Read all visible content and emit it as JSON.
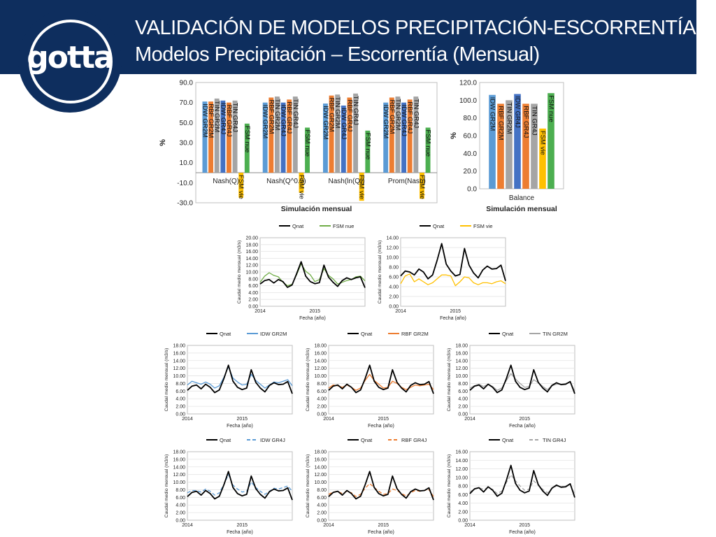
{
  "header": {
    "title": "VALIDACIÓN DE MODELOS PRECIPITACIÓN-ESCORRENTÍA",
    "subtitle": "Modelos Precipitación – Escorrentía (Mensual)",
    "logo_text": "gotta",
    "colors": {
      "banner": "#0e2e5e",
      "text": "#ffffff"
    }
  },
  "chart_data": [
    {
      "id": "nash",
      "type": "bar",
      "xlabel": "Simulación mensual",
      "ylabel": "%",
      "ylim": [
        -30,
        90
      ],
      "yticks": [
        "90.0",
        "70.0",
        "50.0",
        "30.0",
        "10.0",
        "-10.0",
        "-30.0"
      ],
      "categories": [
        "Nash(Q)",
        "Nash(Q^0.5)",
        "Nash(ln(Q))",
        "Prom(Nash)"
      ],
      "series": [
        {
          "name": "IDW GR2M",
          "color": "#5b9bd5",
          "values": [
            71,
            70,
            69,
            70
          ]
        },
        {
          "name": "RBF GR2M",
          "color": "#ed7d31",
          "values": [
            71,
            75,
            77,
            75
          ]
        },
        {
          "name": "TIN GR2M",
          "color": "#a5a5a5",
          "values": [
            74,
            76,
            78,
            76
          ]
        },
        {
          "name": "IDW GR4J",
          "color": "#4472c4",
          "values": [
            72,
            70,
            67,
            70
          ]
        },
        {
          "name": "RBF GR4J",
          "color": "#ed7d31",
          "values": [
            70,
            73,
            75,
            73
          ]
        },
        {
          "name": "TIN GR4J",
          "color": "#a5a5a5",
          "values": [
            72,
            76,
            79,
            76
          ]
        },
        {
          "name": "FSM vie",
          "color": "#ffc000",
          "values": [
            -25,
            -20,
            -28,
            -26
          ]
        },
        {
          "name": "FSM nue",
          "color": "#4caf50",
          "values": [
            49,
            45,
            42,
            45
          ]
        }
      ]
    },
    {
      "id": "balance",
      "type": "bar",
      "xlabel": "Simulación mensual",
      "ylabel": "%",
      "ylim": [
        0,
        120
      ],
      "yticks": [
        "120.0",
        "100.0",
        "80.0",
        "60.0",
        "40.0",
        "20.0",
        "0.0"
      ],
      "categories": [
        "Balance"
      ],
      "series": [
        {
          "name": "IDW GR2M",
          "color": "#5b9bd5",
          "values": [
            106
          ]
        },
        {
          "name": "RBF GR2M",
          "color": "#ed7d31",
          "values": [
            96
          ]
        },
        {
          "name": "TIN GR2M",
          "color": "#a5a5a5",
          "values": [
            100
          ]
        },
        {
          "name": "IDW GR4J",
          "color": "#4472c4",
          "values": [
            107
          ]
        },
        {
          "name": "RBF GR4J",
          "color": "#ed7d31",
          "values": [
            96
          ]
        },
        {
          "name": "TIN GR4J",
          "color": "#a5a5a5",
          "values": [
            96
          ]
        },
        {
          "name": "FSM vie",
          "color": "#ffc000",
          "values": [
            68
          ]
        },
        {
          "name": "FSM nue",
          "color": "#4caf50",
          "values": [
            108
          ]
        }
      ]
    },
    {
      "id": "fsm_nue",
      "type": "line",
      "ylabel": "Caudal medio mensual (m3/s)",
      "xlabel": "Fecha (año)",
      "ylim": [
        0,
        20
      ],
      "ytick_step": 2,
      "ytick_decimals": 2,
      "x_ticks": [
        {
          "label": "2014",
          "at": 0
        },
        {
          "label": "2015",
          "at": 12
        }
      ],
      "series": [
        {
          "name": "Qnat",
          "color": "#000000",
          "dash": "",
          "values": [
            6.5,
            7.5,
            7.8,
            6.8,
            7.8,
            7.2,
            5.5,
            6.2,
            9.5,
            13.0,
            8.8,
            7.2,
            6.6,
            6.9,
            12.0,
            8.5,
            7.0,
            5.8,
            7.5,
            8.3,
            7.8,
            8.3,
            8.6,
            5.4
          ]
        },
        {
          "name": "FSM nue",
          "color": "#70ad47",
          "dash": "",
          "values": [
            7.0,
            8.8,
            9.8,
            9.0,
            8.6,
            7.0,
            6.0,
            6.4,
            9.2,
            12.4,
            10.2,
            9.2,
            7.2,
            7.8,
            11.0,
            9.0,
            8.0,
            6.5,
            7.0,
            7.5,
            7.8,
            8.6,
            8.8,
            7.4
          ]
        }
      ]
    },
    {
      "id": "fsm_vie",
      "type": "line",
      "ylabel": "Caudal medio mensual (m3/s)",
      "xlabel": "Fecha (año)",
      "ylim": [
        0,
        14
      ],
      "ytick_step": 2,
      "ytick_decimals": 2,
      "x_ticks": [
        {
          "label": "2014",
          "at": 0
        },
        {
          "label": "2015",
          "at": 12
        }
      ],
      "series": [
        {
          "name": "Qnat",
          "color": "#000000",
          "dash": "",
          "values": [
            6.2,
            7.2,
            7.0,
            6.4,
            7.6,
            7.0,
            5.6,
            6.4,
            9.4,
            12.8,
            8.6,
            7.2,
            6.2,
            6.5,
            11.8,
            8.4,
            6.8,
            5.8,
            7.4,
            8.2,
            7.6,
            7.7,
            8.4,
            5.2
          ]
        },
        {
          "name": "FSM vie",
          "color": "#ffc000",
          "dash": "",
          "values": [
            4.6,
            6.2,
            6.6,
            5.0,
            5.6,
            5.0,
            4.4,
            4.8,
            5.6,
            6.4,
            6.4,
            6.2,
            4.2,
            5.0,
            6.0,
            5.8,
            4.8,
            4.4,
            4.8,
            4.8,
            4.6,
            5.0,
            5.2,
            4.6
          ]
        }
      ]
    },
    {
      "id": "idw_gr2m",
      "type": "line",
      "ylabel": "Caudal medio mensual (m3/s)",
      "xlabel": "Fecha (año)",
      "ylim": [
        0,
        18
      ],
      "ytick_step": 2,
      "ytick_decimals": 2,
      "x_ticks": [
        {
          "label": "2014",
          "at": 0
        },
        {
          "label": "2015",
          "at": 12
        }
      ],
      "series": [
        {
          "name": "Qnat",
          "color": "#000000",
          "dash": "",
          "values": [
            6.2,
            7.3,
            7.6,
            6.6,
            7.8,
            7.0,
            5.6,
            6.3,
            9.3,
            12.8,
            8.6,
            7.0,
            6.4,
            6.8,
            11.6,
            8.3,
            6.8,
            5.8,
            7.5,
            8.2,
            7.7,
            7.8,
            8.5,
            5.3
          ]
        },
        {
          "name": "IDW GR2M",
          "color": "#5b9bd5",
          "dash": "",
          "values": [
            7.6,
            8.6,
            8.2,
            7.8,
            8.4,
            7.8,
            6.8,
            7.4,
            9.6,
            12.4,
            9.4,
            8.4,
            7.6,
            7.8,
            10.4,
            8.8,
            7.8,
            6.8,
            7.6,
            8.4,
            8.2,
            8.6,
            9.0,
            7.4
          ]
        }
      ]
    },
    {
      "id": "rbf_gr2m",
      "type": "line",
      "ylabel": "Caudal medio mensual (m3/s)",
      "xlabel": "Fecha (año)",
      "ylim": [
        0,
        18
      ],
      "ytick_step": 2,
      "ytick_decimals": 2,
      "x_ticks": [
        {
          "label": "2014",
          "at": 0
        },
        {
          "label": "2015",
          "at": 12
        }
      ],
      "series": [
        {
          "name": "Qnat",
          "color": "#000000",
          "dash": "",
          "values": [
            6.2,
            7.3,
            7.6,
            6.6,
            7.8,
            7.0,
            5.6,
            6.3,
            9.3,
            12.8,
            8.6,
            7.0,
            6.4,
            6.8,
            11.6,
            8.3,
            6.8,
            5.8,
            7.5,
            8.2,
            7.7,
            7.8,
            8.5,
            5.3
          ]
        },
        {
          "name": "RBF GR2M",
          "color": "#ed7d31",
          "dash": "",
          "values": [
            6.8,
            7.6,
            7.4,
            7.0,
            7.6,
            7.0,
            6.2,
            6.8,
            8.8,
            10.4,
            8.8,
            7.8,
            6.8,
            7.0,
            8.6,
            8.0,
            7.0,
            6.4,
            7.0,
            7.6,
            7.4,
            7.6,
            7.8,
            6.4
          ]
        }
      ]
    },
    {
      "id": "tin_gr2m",
      "type": "line",
      "ylabel": "Caudal medio mensual (m3/s)",
      "xlabel": "Fecha (año)",
      "ylim": [
        0,
        18
      ],
      "ytick_step": 2,
      "ytick_decimals": 2,
      "x_ticks": [
        {
          "label": "2014",
          "at": 0
        },
        {
          "label": "2015",
          "at": 12
        }
      ],
      "series": [
        {
          "name": "Qnat",
          "color": "#000000",
          "dash": "",
          "values": [
            6.2,
            7.3,
            7.6,
            6.6,
            7.8,
            7.0,
            5.6,
            6.3,
            9.3,
            12.8,
            8.6,
            7.0,
            6.4,
            6.8,
            11.6,
            8.3,
            6.8,
            5.8,
            7.5,
            8.2,
            7.7,
            7.8,
            8.5,
            5.3
          ]
        },
        {
          "name": "TIN GR2M",
          "color": "#a5a5a5",
          "dash": "",
          "values": [
            6.8,
            7.4,
            7.8,
            7.2,
            7.8,
            7.2,
            6.2,
            6.8,
            8.8,
            10.6,
            9.2,
            8.0,
            7.0,
            7.2,
            9.0,
            8.2,
            7.2,
            6.4,
            7.4,
            7.8,
            7.8,
            8.0,
            8.4,
            6.0
          ]
        }
      ]
    },
    {
      "id": "idw_gr4j",
      "type": "line",
      "ylabel": "Caudal medio mensual (m3/s)",
      "xlabel": "Fecha (año)",
      "ylim": [
        0,
        18
      ],
      "ytick_step": 2,
      "ytick_decimals": 2,
      "x_ticks": [
        {
          "label": "2014",
          "at": 0
        },
        {
          "label": "2015",
          "at": 12
        }
      ],
      "series": [
        {
          "name": "Qnat",
          "color": "#000000",
          "dash": "",
          "values": [
            6.2,
            7.3,
            7.6,
            6.6,
            7.8,
            7.0,
            5.6,
            6.3,
            9.3,
            12.8,
            8.6,
            7.0,
            6.4,
            6.8,
            11.6,
            8.3,
            6.8,
            5.8,
            7.5,
            8.2,
            7.7,
            7.8,
            8.5,
            5.3
          ]
        },
        {
          "name": "IDW GR4J",
          "color": "#5b9bd5",
          "dash": "5,3",
          "values": [
            7.2,
            7.8,
            7.8,
            7.4,
            8.2,
            7.6,
            6.6,
            7.2,
            9.4,
            12.0,
            9.2,
            8.2,
            7.4,
            7.6,
            10.0,
            8.6,
            7.6,
            6.8,
            7.6,
            8.4,
            8.2,
            8.6,
            9.0,
            7.6
          ]
        }
      ]
    },
    {
      "id": "rbf_gr4j",
      "type": "line",
      "ylabel": "Caudal medio mensual (m3/s)",
      "xlabel": "Fecha (año)",
      "ylim": [
        0,
        18
      ],
      "ytick_step": 2,
      "ytick_decimals": 2,
      "x_ticks": [
        {
          "label": "2014",
          "at": 0
        },
        {
          "label": "2015",
          "at": 12
        }
      ],
      "series": [
        {
          "name": "Qnat",
          "color": "#000000",
          "dash": "",
          "values": [
            6.2,
            7.3,
            7.6,
            6.6,
            7.8,
            7.0,
            5.6,
            6.3,
            9.3,
            12.8,
            8.6,
            7.0,
            6.4,
            6.8,
            11.6,
            8.3,
            6.8,
            5.8,
            7.5,
            8.2,
            7.7,
            7.8,
            8.5,
            5.3
          ]
        },
        {
          "name": "RBF GR4J",
          "color": "#ed7d31",
          "dash": "5,3",
          "values": [
            6.8,
            7.4,
            7.6,
            7.0,
            7.6,
            7.2,
            6.2,
            6.8,
            8.4,
            9.6,
            8.6,
            7.6,
            6.8,
            7.0,
            8.2,
            7.8,
            7.0,
            6.4,
            7.2,
            7.8,
            7.6,
            7.8,
            8.0,
            6.2
          ]
        }
      ]
    },
    {
      "id": "tin_gr4j",
      "type": "line",
      "ylabel": "Caudal medio mensual (m3/s)",
      "xlabel": "Fecha (año)",
      "ylim": [
        0,
        16
      ],
      "ytick_step": 2,
      "ytick_decimals": 2,
      "x_ticks": [
        {
          "label": "2014",
          "at": 0
        },
        {
          "label": "2015",
          "at": 12
        }
      ],
      "series": [
        {
          "name": "Qnat",
          "color": "#000000",
          "dash": "",
          "values": [
            6.2,
            7.3,
            7.6,
            6.6,
            7.8,
            7.0,
            5.6,
            6.3,
            9.3,
            12.8,
            8.6,
            7.0,
            6.4,
            6.8,
            11.6,
            8.3,
            6.8,
            5.8,
            7.5,
            8.2,
            7.7,
            7.8,
            8.5,
            5.3
          ]
        },
        {
          "name": "TIN GR4J",
          "color": "#a5a5a5",
          "dash": "5,3",
          "values": [
            6.6,
            7.4,
            7.6,
            7.2,
            7.6,
            7.2,
            6.2,
            6.8,
            8.8,
            10.6,
            9.2,
            8.0,
            7.0,
            7.2,
            9.2,
            8.2,
            7.2,
            6.4,
            7.4,
            8.0,
            7.8,
            8.0,
            8.4,
            6.0
          ]
        }
      ]
    }
  ]
}
